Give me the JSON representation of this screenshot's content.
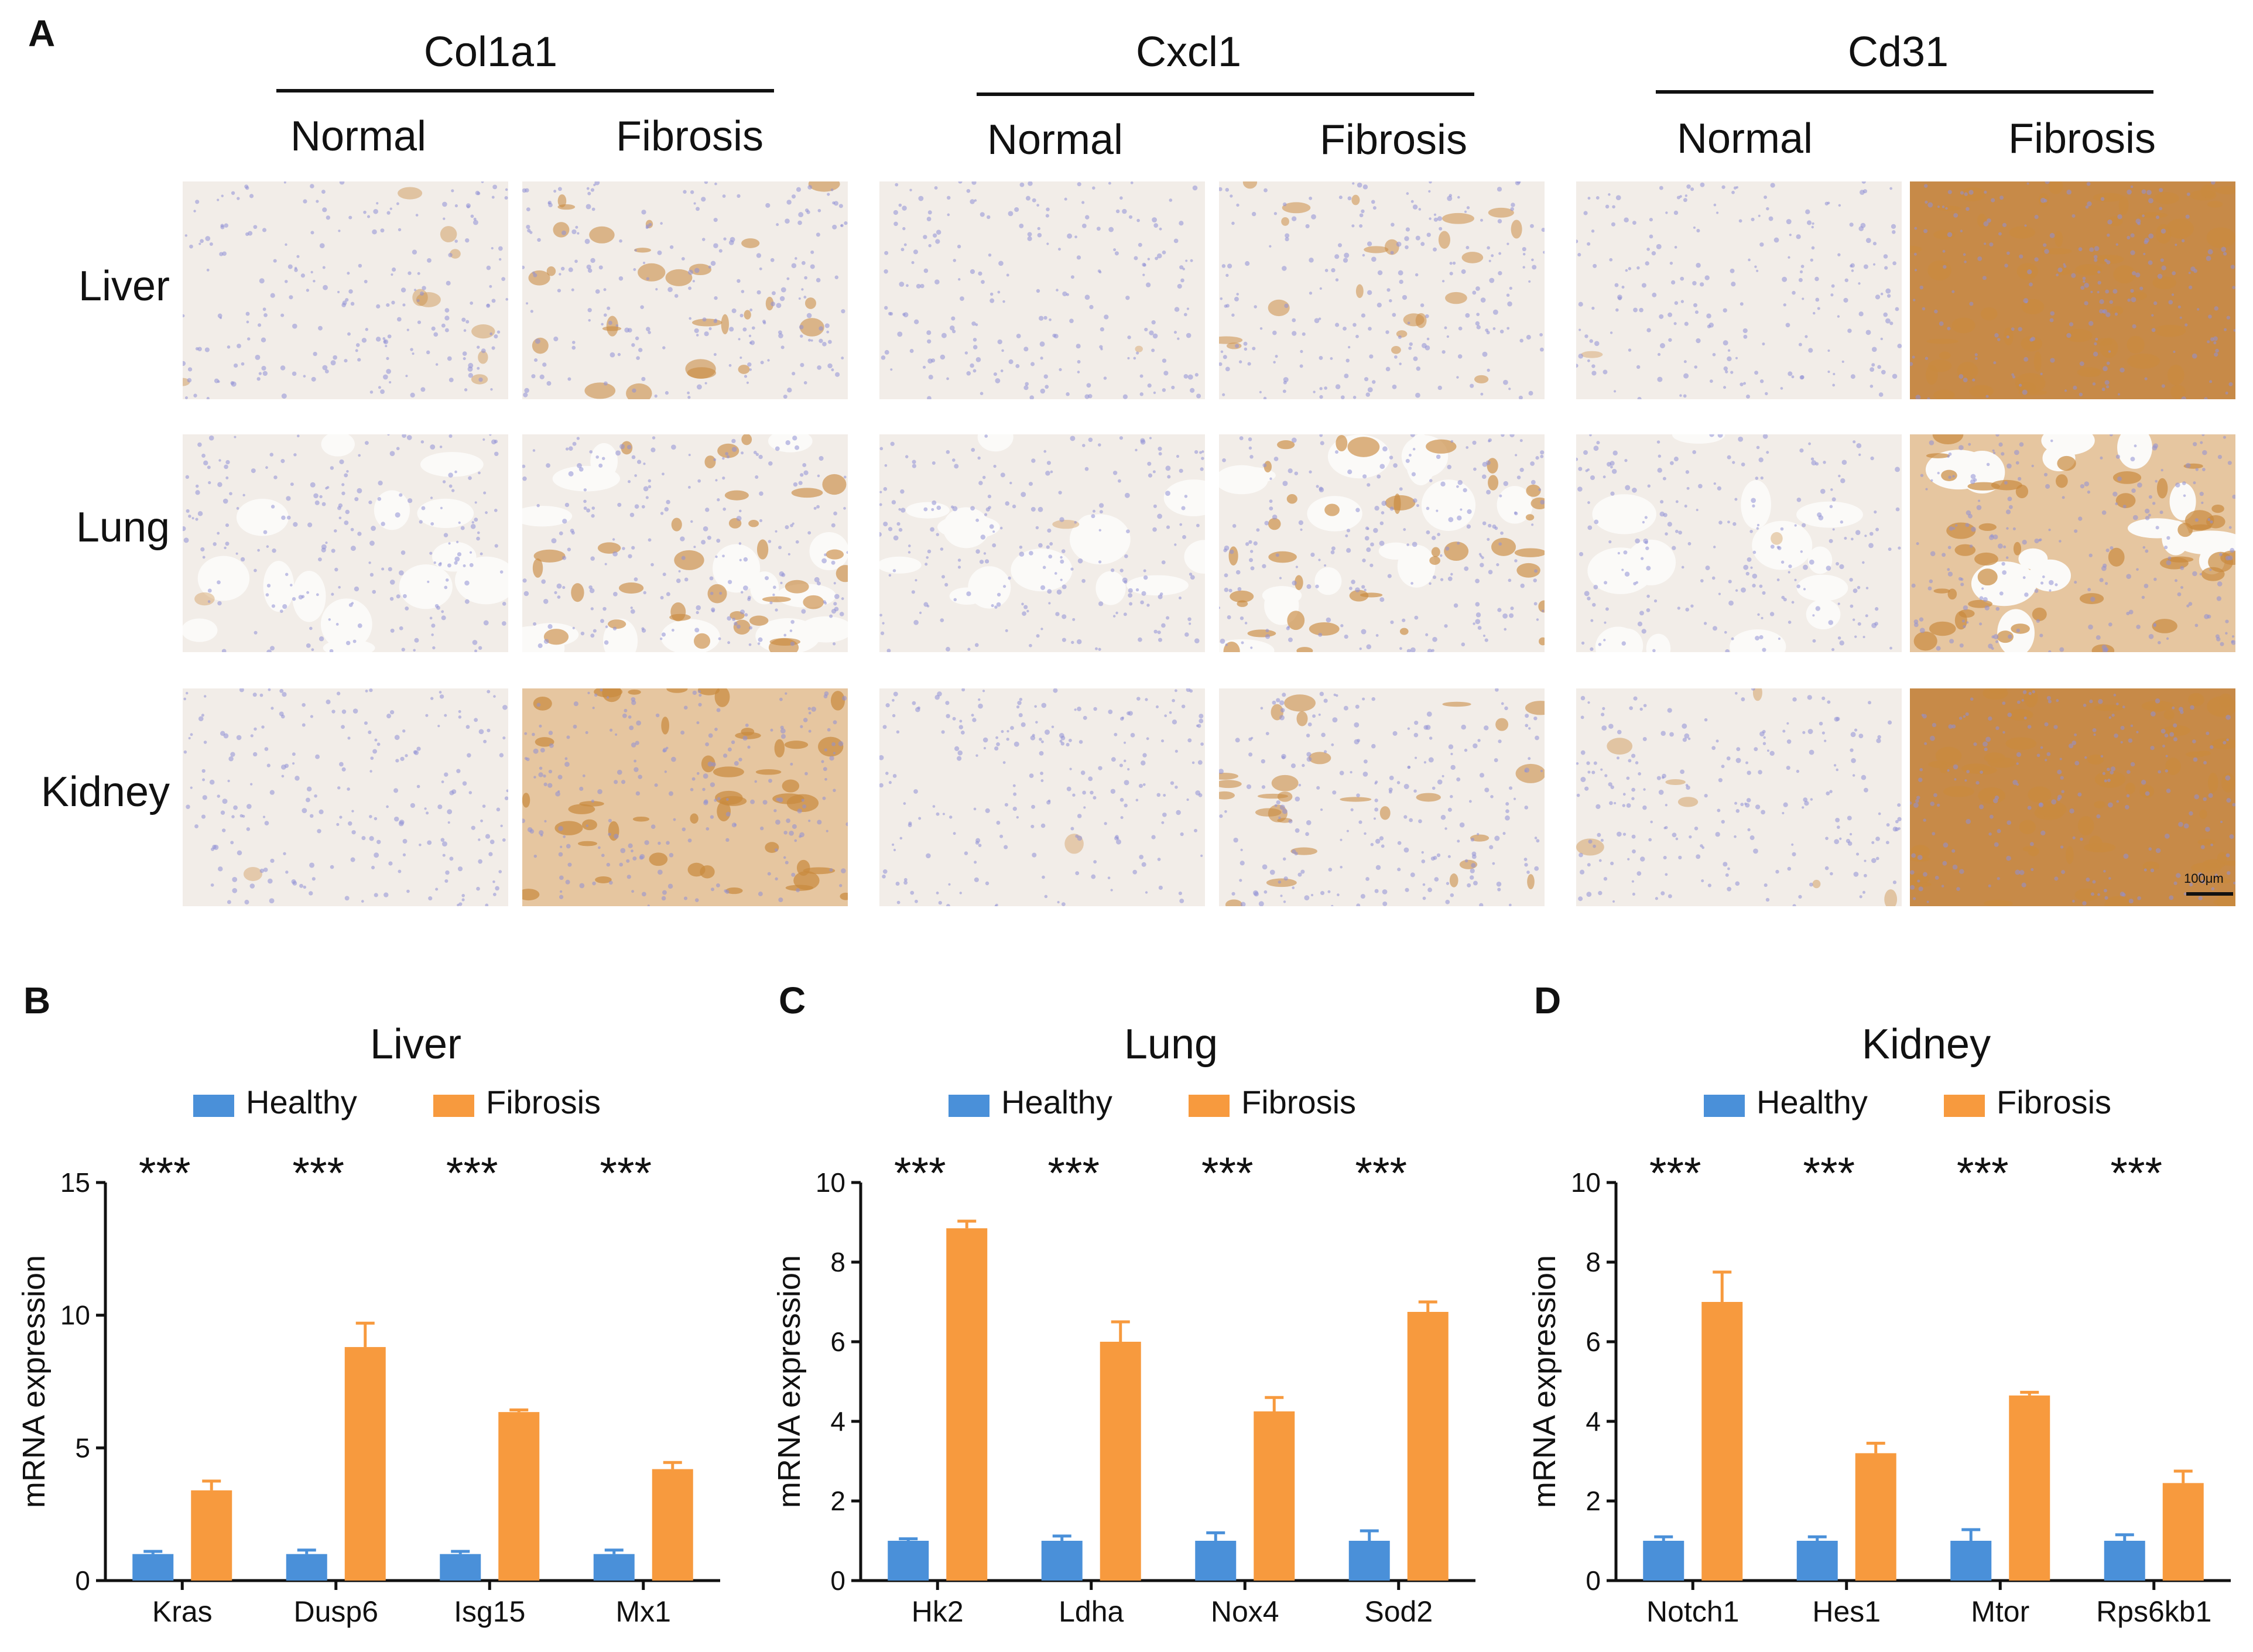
{
  "figure": {
    "panel_a": {
      "letter": "A",
      "markers": [
        {
          "label": "Col1a1",
          "conditions": [
            "Normal",
            "Fibrosis"
          ]
        },
        {
          "label": "Cxcl1",
          "conditions": [
            "Normal",
            "Fibrosis"
          ]
        },
        {
          "label": "Cd31",
          "conditions": [
            "Normal",
            "Fibrosis"
          ]
        }
      ],
      "rows": [
        "Liver",
        "Lung",
        "Kidney"
      ],
      "scale_bar_label": "100μm"
    },
    "panel_b": {
      "letter": "B"
    },
    "panel_c": {
      "letter": "C"
    },
    "panel_d": {
      "letter": "D"
    }
  },
  "colors": {
    "healthy": "#4a90d9",
    "fibrosis": "#f79a3e",
    "hematoxylin": "#8f8fd6",
    "dab": "#c98a3f"
  },
  "chart_data": [
    {
      "type": "bar",
      "title": "Liver",
      "ylabel": "mRNA expression",
      "xlabel": "",
      "categories": [
        "Kras",
        "Dusp6",
        "Isg15",
        "Mx1"
      ],
      "ylim": [
        0,
        15
      ],
      "yticks": [
        "0",
        "5",
        "10",
        "15"
      ],
      "legend": [
        "Healthy",
        "Fibrosis"
      ],
      "legend_position": "top",
      "significance": [
        "***",
        "***",
        "***",
        "***"
      ],
      "series": [
        {
          "name": "Healthy",
          "values": [
            1.0,
            1.0,
            1.0,
            1.0
          ],
          "errors": [
            0.1,
            0.15,
            0.1,
            0.15
          ]
        },
        {
          "name": "Fibrosis",
          "values": [
            3.4,
            8.8,
            6.35,
            4.2
          ],
          "errors": [
            0.35,
            0.9,
            0.08,
            0.25
          ]
        }
      ]
    },
    {
      "type": "bar",
      "title": "Lung",
      "ylabel": "mRNA expression",
      "xlabel": "",
      "categories": [
        "Hk2",
        "Ldha",
        "Nox4",
        "Sod2"
      ],
      "ylim": [
        0,
        10
      ],
      "yticks": [
        "0",
        "2",
        "4",
        "6",
        "8",
        "10"
      ],
      "legend": [
        "Healthy",
        "Fibrosis"
      ],
      "legend_position": "top",
      "significance": [
        "***",
        "***",
        "***",
        "***"
      ],
      "series": [
        {
          "name": "Healthy",
          "values": [
            1.0,
            1.0,
            1.0,
            1.0
          ],
          "errors": [
            0.05,
            0.12,
            0.2,
            0.25
          ]
        },
        {
          "name": "Fibrosis",
          "values": [
            8.85,
            6.0,
            4.25,
            6.75
          ],
          "errors": [
            0.18,
            0.5,
            0.35,
            0.25
          ]
        }
      ]
    },
    {
      "type": "bar",
      "title": "Kidney",
      "ylabel": "mRNA expression",
      "xlabel": "",
      "categories": [
        "Notch1",
        "Hes1",
        "Mtor",
        "Rps6kb1"
      ],
      "ylim": [
        0,
        10
      ],
      "yticks": [
        "0",
        "2",
        "4",
        "6",
        "8",
        "10"
      ],
      "legend": [
        "Healthy",
        "Fibrosis"
      ],
      "legend_position": "top",
      "significance": [
        "***",
        "***",
        "***",
        "***"
      ],
      "series": [
        {
          "name": "Healthy",
          "values": [
            1.0,
            1.0,
            1.0,
            1.0
          ],
          "errors": [
            0.1,
            0.1,
            0.28,
            0.15
          ]
        },
        {
          "name": "Fibrosis",
          "values": [
            7.0,
            3.2,
            4.65,
            2.45
          ],
          "errors": [
            0.75,
            0.25,
            0.08,
            0.3
          ]
        }
      ]
    }
  ]
}
